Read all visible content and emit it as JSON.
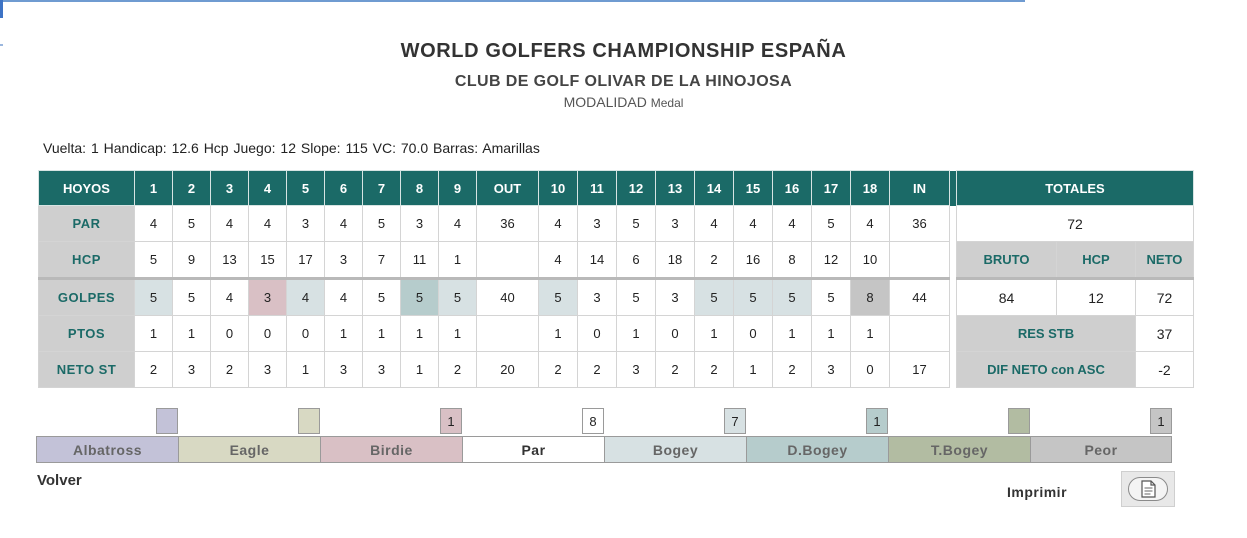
{
  "colors": {
    "header_bg": "#1b6a67",
    "label_bg": "#cfcfcf",
    "albatross": "#c3c2d8",
    "eagle": "#d8d9c3",
    "birdie": "#d9c0c5",
    "par": "#ffffff",
    "bogey": "#d7e1e3",
    "dbogey": "#b6cccc",
    "tbogey": "#b2bca2",
    "peor": "#c5c5c5"
  },
  "title": "WORLD GOLFERS CHAMPIONSHIP ESPAÑA",
  "club": "CLUB DE GOLF OLIVAR DE LA HINOJOSA",
  "modalidad_label": "MODALIDAD",
  "modalidad_value": "Medal",
  "info": "Vuelta: 1  Handicap: 12.6   Hcp Juego: 12   Slope: 115   VC: 70.0   Barras: Amarillas",
  "scorecard": {
    "row_labels": {
      "hoyos": "HOYOS",
      "par": "PAR",
      "hcp": "HCP",
      "golpes": "GOLPES",
      "ptos": "PTOS",
      "neto": "NETO ST"
    },
    "holes": [
      "1",
      "2",
      "3",
      "4",
      "5",
      "6",
      "7",
      "8",
      "9",
      "OUT",
      "10",
      "11",
      "12",
      "13",
      "14",
      "15",
      "16",
      "17",
      "18",
      "IN"
    ],
    "par": [
      "4",
      "5",
      "4",
      "4",
      "3",
      "4",
      "5",
      "3",
      "4",
      "36",
      "4",
      "3",
      "5",
      "3",
      "4",
      "4",
      "4",
      "5",
      "4",
      "36"
    ],
    "hcp": [
      "5",
      "9",
      "13",
      "15",
      "17",
      "3",
      "7",
      "11",
      "1",
      "",
      "4",
      "14",
      "6",
      "18",
      "2",
      "16",
      "8",
      "12",
      "10",
      ""
    ],
    "golpes": [
      "5",
      "5",
      "4",
      "3",
      "4",
      "4",
      "5",
      "5",
      "5",
      "40",
      "5",
      "3",
      "5",
      "3",
      "5",
      "5",
      "5",
      "5",
      "8",
      "44"
    ],
    "golpes_result": [
      "bogey",
      "par",
      "par",
      "birdie",
      "bogey",
      "par",
      "par",
      "dbogey",
      "bogey",
      "none",
      "bogey",
      "par",
      "par",
      "par",
      "bogey",
      "bogey",
      "bogey",
      "par",
      "peor",
      "none"
    ],
    "ptos": [
      "1",
      "1",
      "0",
      "0",
      "0",
      "1",
      "1",
      "1",
      "1",
      "",
      "1",
      "0",
      "1",
      "0",
      "1",
      "0",
      "1",
      "1",
      "1",
      ""
    ],
    "neto": [
      "2",
      "3",
      "2",
      "3",
      "1",
      "3",
      "3",
      "1",
      "2",
      "20",
      "2",
      "2",
      "3",
      "2",
      "2",
      "1",
      "2",
      "3",
      "0",
      "17"
    ]
  },
  "totales": {
    "header": "TOTALES",
    "par_total": "72",
    "bruto_label": "BRUTO",
    "hcp_label": "HCP",
    "neto_label": "NETO",
    "bruto": "84",
    "hcp": "12",
    "neto": "72",
    "res_stb_label": "RES STB",
    "res_stb": "37",
    "dif_label": "DIF NETO con ASC",
    "dif": "-2"
  },
  "legend": [
    {
      "label": "Albatross",
      "count": "",
      "key": "albatross"
    },
    {
      "label": "Eagle",
      "count": "",
      "key": "eagle"
    },
    {
      "label": "Birdie",
      "count": "1",
      "key": "birdie"
    },
    {
      "label": "Par",
      "count": "8",
      "key": "par"
    },
    {
      "label": "Bogey",
      "count": "7",
      "key": "bogey"
    },
    {
      "label": "D.Bogey",
      "count": "1",
      "key": "dbogey"
    },
    {
      "label": "T.Bogey",
      "count": "",
      "key": "tbogey"
    },
    {
      "label": "Peor",
      "count": "1",
      "key": "peor"
    }
  ],
  "volver": "Volver",
  "imprimir": "Imprimir",
  "print_icon": "document-icon"
}
